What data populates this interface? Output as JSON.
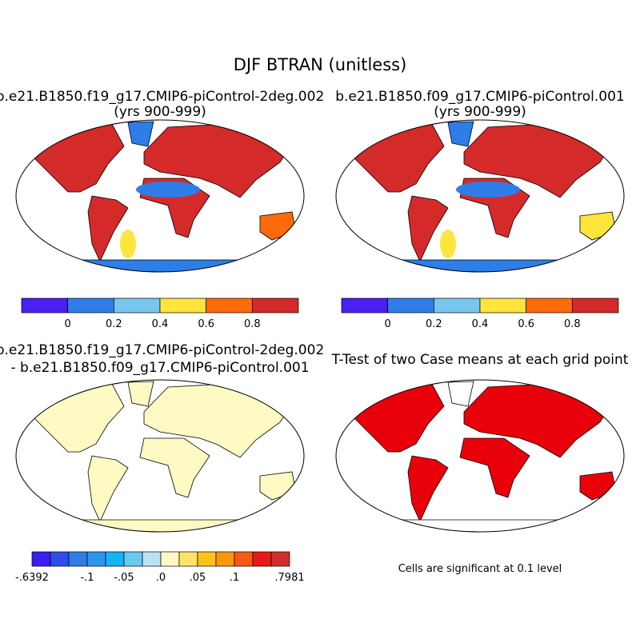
{
  "title": "DJF BTRAN (unitless)",
  "panels": [
    {
      "title": [
        "b.e21.B1850.f19_g17.CMIP6-piControl-2deg.002",
        "(yrs 900-999)"
      ],
      "colorbar": {
        "colors": [
          "#4b1ef5",
          "#2f7ee8",
          "#78c6ee",
          "#fde53c",
          "#fd6a0a",
          "#d42a2a"
        ],
        "ticks": [
          0,
          0.2,
          0.4,
          0.6,
          0.8
        ]
      }
    },
    {
      "title": [
        "b.e21.B1850.f09_g17.CMIP6-piControl.001",
        "(yrs 900-999)"
      ],
      "colorbar": {
        "colors": [
          "#4b1ef5",
          "#2f7ee8",
          "#78c6ee",
          "#fde53c",
          "#fd6a0a",
          "#d42a2a"
        ],
        "ticks": [
          0,
          0.2,
          0.4,
          0.6,
          0.8
        ]
      }
    },
    {
      "title": [
        "b.e21.B1850.f19_g17.CMIP6-piControl-2deg.002",
        "- b.e21.B1850.f09_g17.CMIP6-piControl.001"
      ],
      "colorbar": {
        "colors": [
          "#3a1ff0",
          "#2d4fe8",
          "#2f7ee8",
          "#2d95ee",
          "#17b2f2",
          "#6ac9ee",
          "#b9e2f2",
          "#fff9c4",
          "#ffe26a",
          "#fcc21c",
          "#f8960c",
          "#f55b12",
          "#e61b17",
          "#d02e2e"
        ],
        "ticks": [
          {
            "value": -0.6392,
            "label": "-.6392"
          },
          {
            "value": -0.1,
            "label": "-.1"
          },
          {
            "value": -0.05,
            "label": "-.05"
          },
          {
            "value": 0,
            "label": ".0"
          },
          {
            "value": 0.05,
            "label": ".05"
          },
          {
            "value": 0.1,
            "label": ".1"
          },
          {
            "value": 0.7981,
            "label": ".7981"
          }
        ]
      }
    },
    {
      "title": [
        "T-Test of two Case means at each grid point"
      ],
      "note": "Cells are significant at 0.1 level"
    }
  ]
}
